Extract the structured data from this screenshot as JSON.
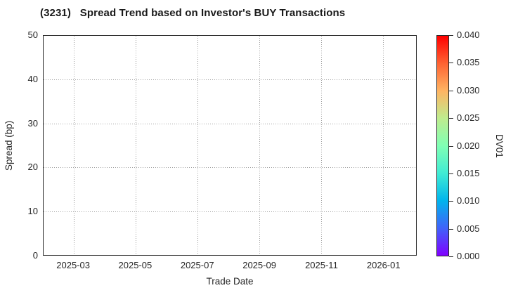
{
  "colors": {
    "background": "#ffffff",
    "spine": "#2a2a2a",
    "grid": "#a0a0a0",
    "text": "#262626",
    "title": "#1a1a1a"
  },
  "chart_data": {
    "type": "scatter",
    "title": "(3231)   Spread Trend based on Investor's BUY Transactions",
    "xlabel": "Trade Date",
    "ylabel": "Spread (bp)",
    "x_tick_labels": [
      "2025-03",
      "2025-05",
      "2025-07",
      "2025-09",
      "2025-11",
      "2026-01"
    ],
    "y_ticks": [
      0,
      10,
      20,
      30,
      40,
      50
    ],
    "y_tick_labels": [
      "0",
      "10",
      "20",
      "30",
      "40",
      "50"
    ],
    "ylim": [
      0,
      50
    ],
    "grid": true,
    "grid_style": "dotted",
    "legend_position": "none",
    "series": [],
    "colorbar": {
      "label": "DV01",
      "range": [
        0.0,
        0.04
      ],
      "ticks": [
        0.0,
        0.005,
        0.01,
        0.015,
        0.02,
        0.025,
        0.03,
        0.035,
        0.04
      ],
      "tick_labels": [
        "0.000",
        "0.005",
        "0.010",
        "0.015",
        "0.020",
        "0.025",
        "0.030",
        "0.035",
        "0.040"
      ],
      "colormap": "rainbow",
      "gradient_bottom_to_top": [
        "#8000FF",
        "#4062FA",
        "#00B4EC",
        "#40ECD4",
        "#80FFB4",
        "#BFEC8E",
        "#FFB462",
        "#FF6232",
        "#FF0000"
      ]
    }
  }
}
